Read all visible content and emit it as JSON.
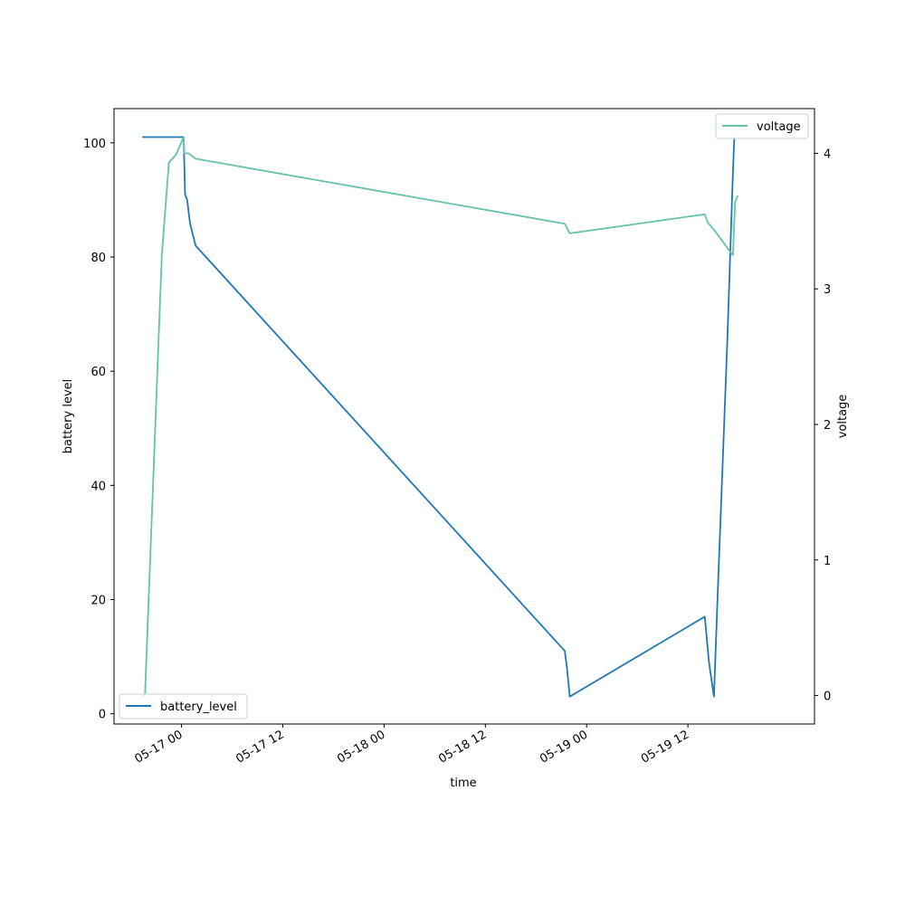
{
  "chart_data": {
    "type": "line",
    "xlabel": "time",
    "y_left_label": "battery level",
    "y_right_label": "voltage",
    "x_range": [
      "2016-05-16 16:00",
      "2016-05-20 03:00"
    ],
    "x_ticks": [
      {
        "t": "2016-05-17 00:00",
        "label": "05-17 00"
      },
      {
        "t": "2016-05-17 12:00",
        "label": "05-17 12"
      },
      {
        "t": "2016-05-18 00:00",
        "label": "05-18 00"
      },
      {
        "t": "2016-05-18 12:00",
        "label": "05-18 12"
      },
      {
        "t": "2016-05-19 00:00",
        "label": "05-19 00"
      },
      {
        "t": "2016-05-19 12:00",
        "label": "05-19 12"
      }
    ],
    "y_left_ylim": [
      -1.8,
      106
    ],
    "y_left_ticks": [
      0,
      20,
      40,
      60,
      80,
      100
    ],
    "y_right_ylim": [
      -0.21,
      4.33
    ],
    "y_right_ticks": [
      0,
      1,
      2,
      3,
      4
    ],
    "legends": [
      {
        "series": "battery_level",
        "placement": "lower left"
      },
      {
        "series": "voltage",
        "placement": "upper right"
      }
    ],
    "grid": false,
    "series": [
      {
        "name": "battery_level",
        "axis": "left",
        "color": "#1f77b4",
        "points": [
          {
            "t": "2016-05-16 19:20",
            "y": 101
          },
          {
            "t": "2016-05-17 00:15",
            "y": 101
          },
          {
            "t": "2016-05-17 00:25",
            "y": 91
          },
          {
            "t": "2016-05-17 00:40",
            "y": 90
          },
          {
            "t": "2016-05-17 01:00",
            "y": 86
          },
          {
            "t": "2016-05-17 01:40",
            "y": 82
          },
          {
            "t": "2016-05-18 21:25",
            "y": 11
          },
          {
            "t": "2016-05-18 21:40",
            "y": 8
          },
          {
            "t": "2016-05-18 22:00",
            "y": 3
          },
          {
            "t": "2016-05-19 14:00",
            "y": 17
          },
          {
            "t": "2016-05-19 14:30",
            "y": 9
          },
          {
            "t": "2016-05-19 15:05",
            "y": 3
          },
          {
            "t": "2016-05-19 15:35",
            "y": 23
          },
          {
            "t": "2016-05-19 16:40",
            "y": 65
          },
          {
            "t": "2016-05-19 17:20",
            "y": 95
          },
          {
            "t": "2016-05-19 17:30",
            "y": 101
          }
        ]
      },
      {
        "name": "voltage",
        "axis": "right",
        "color": "#66c2a5",
        "points": [
          {
            "t": "2016-05-16 19:20",
            "y": 0
          },
          {
            "t": "2016-05-16 19:40",
            "y": 0
          },
          {
            "t": "2016-05-16 21:40",
            "y": 3.25
          },
          {
            "t": "2016-05-16 22:30",
            "y": 3.93
          },
          {
            "t": "2016-05-16 23:20",
            "y": 3.99
          },
          {
            "t": "2016-05-17 00:15",
            "y": 4.12
          },
          {
            "t": "2016-05-17 00:20",
            "y": 4
          },
          {
            "t": "2016-05-17 00:50",
            "y": 4.0
          },
          {
            "t": "2016-05-17 01:40",
            "y": 3.96
          },
          {
            "t": "2016-05-18 21:25",
            "y": 3.48
          },
          {
            "t": "2016-05-18 22:00",
            "y": 3.41
          },
          {
            "t": "2016-05-19 14:00",
            "y": 3.55
          },
          {
            "t": "2016-05-19 14:20",
            "y": 3.49
          },
          {
            "t": "2016-05-19 15:10",
            "y": 3.43
          },
          {
            "t": "2016-05-19 17:10",
            "y": 3.26
          },
          {
            "t": "2016-05-19 17:20",
            "y": 3.25
          },
          {
            "t": "2016-05-19 17:35",
            "y": 3.64
          },
          {
            "t": "2016-05-19 17:55",
            "y": 3.69
          }
        ]
      }
    ]
  }
}
